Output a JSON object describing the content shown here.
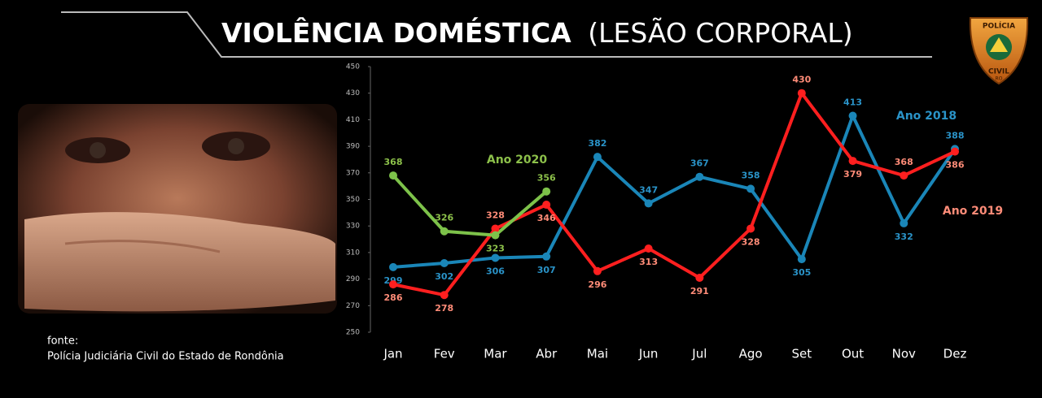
{
  "chart_data": {
    "type": "line",
    "title": "VIOLÊNCIA DOMÉSTICA",
    "subtitle": "(LESÃO CORPORAL)",
    "categories": [
      "Jan",
      "Fev",
      "Mar",
      "Abr",
      "Mai",
      "Jun",
      "Jul",
      "Ago",
      "Set",
      "Out",
      "Nov",
      "Dez"
    ],
    "series": [
      {
        "name": "Ano 2018",
        "color": "#1a86b8",
        "label_color": "#2a93c8",
        "values": [
          299,
          302,
          306,
          307,
          382,
          347,
          367,
          358,
          305,
          413,
          332,
          388
        ]
      },
      {
        "name": "Ano 2019",
        "color": "#ff1f1f",
        "label_color": "#ff8c78",
        "values": [
          286,
          278,
          328,
          346,
          296,
          313,
          291,
          328,
          430,
          379,
          368,
          386
        ]
      },
      {
        "name": "Ano 2020",
        "color": "#7dc24a",
        "label_color": "#8cc04a",
        "values": [
          368,
          326,
          323,
          356,
          null,
          null,
          null,
          null,
          null,
          null,
          null,
          null
        ]
      }
    ],
    "ylim": [
      250,
      450
    ],
    "yticks": [
      250,
      270,
      290,
      310,
      330,
      350,
      370,
      390,
      410,
      430,
      450
    ],
    "grid": false
  },
  "source": {
    "label": "fonte:",
    "text": "Polícia Judiciária Civil  do Estado de Rondônia"
  },
  "badge": {
    "top": "POLÍCIA",
    "bottom": "CIVIL",
    "state": "RO"
  }
}
